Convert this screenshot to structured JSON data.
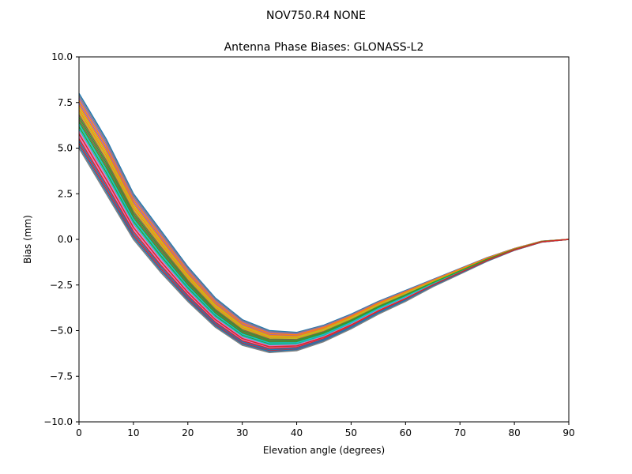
{
  "chart_data": {
    "type": "line",
    "suptitle": "NOV750.R4        NONE",
    "title": "Antenna Phase Biases: GLONASS-L2",
    "xlabel": "Elevation angle (degrees)",
    "ylabel": "Bias (mm)",
    "xlim": [
      0,
      90
    ],
    "ylim": [
      -10,
      10
    ],
    "xticks": [
      0,
      10,
      20,
      30,
      40,
      50,
      60,
      70,
      80,
      90
    ],
    "xtick_labels": [
      "0",
      "10",
      "20",
      "30",
      "40",
      "50",
      "60",
      "70",
      "80",
      "90"
    ],
    "yticks": [
      -10,
      -7.5,
      -5,
      -2.5,
      0,
      2.5,
      5,
      7.5,
      10
    ],
    "ytick_labels": [
      "−10.0",
      "−7.5",
      "−5.0",
      "−2.5",
      "0.0",
      "2.5",
      "5.0",
      "7.5",
      "10.0"
    ],
    "grid": false,
    "legend": false,
    "x": [
      0,
      5,
      10,
      15,
      20,
      25,
      30,
      35,
      40,
      45,
      50,
      55,
      60,
      65,
      70,
      75,
      80,
      85,
      90
    ],
    "series_count": 24,
    "series_colors": [
      "#1f77b4",
      "#ff7f0e",
      "#2ca02c",
      "#d62728",
      "#9467bd",
      "#8c564b",
      "#e377c2",
      "#7f7f7f",
      "#bcbd22",
      "#17becf"
    ],
    "series_upper": {
      "values": [
        8.0,
        5.5,
        2.5,
        0.5,
        -1.5,
        -3.2,
        -4.4,
        -5.0,
        -5.1,
        -4.7,
        -4.1,
        -3.4,
        -2.8,
        -2.2,
        -1.6,
        -1.0,
        -0.5,
        -0.1,
        0.0
      ]
    },
    "series_lower": {
      "values": [
        5.0,
        2.5,
        0.0,
        -1.8,
        -3.4,
        -4.8,
        -5.8,
        -6.2,
        -6.1,
        -5.6,
        -4.9,
        -4.1,
        -3.4,
        -2.6,
        -1.9,
        -1.2,
        -0.6,
        -0.15,
        0.0
      ]
    }
  }
}
